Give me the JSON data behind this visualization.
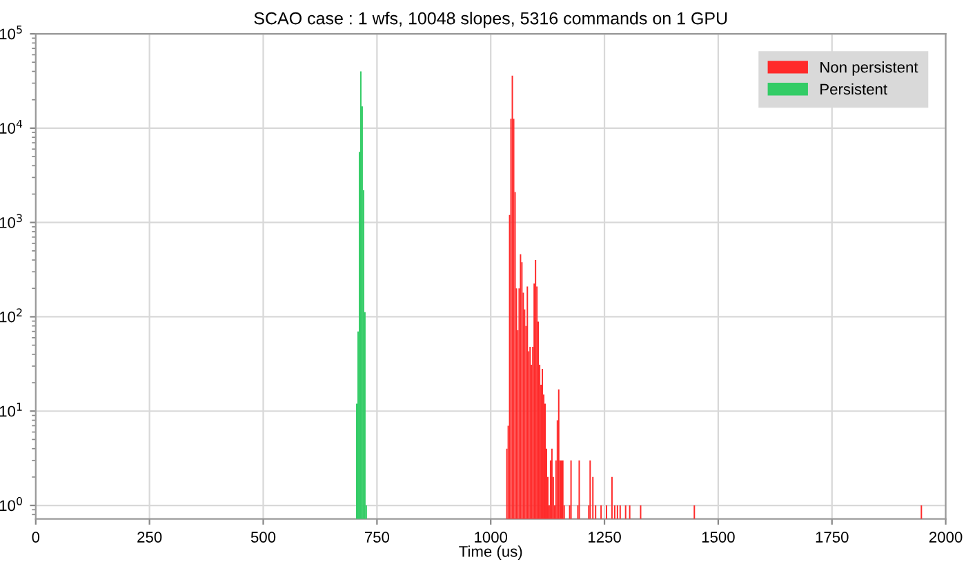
{
  "chart_data": {
    "type": "histogram",
    "title": "SCAO case : 1 wfs, 10048 slopes, 5316 commands on 1 GPU",
    "xlabel": "Time (us)",
    "bins": [
      704,
      707,
      710,
      713,
      716,
      719,
      722,
      725,
      728,
      1034,
      1037,
      1040,
      1043,
      1046,
      1049,
      1052,
      1055,
      1058,
      1061,
      1064,
      1067,
      1070,
      1073,
      1076,
      1079,
      1082,
      1085,
      1088,
      1091,
      1094,
      1097,
      1100,
      1103,
      1106,
      1109,
      1112,
      1115,
      1118,
      1121,
      1124,
      1127,
      1130,
      1133,
      1136,
      1139,
      1142,
      1145,
      1148,
      1151,
      1160,
      1163,
      1172,
      1175,
      1178,
      1190,
      1193,
      1196,
      1214,
      1217,
      1220,
      1223,
      1226,
      1229,
      1232,
      1241,
      1244,
      1253,
      1256,
      1265,
      1268,
      1271,
      1274,
      1277,
      1280,
      1283,
      1286,
      1295,
      1298,
      1304,
      1307,
      1328,
      1331,
      1446,
      1449,
      1945,
      1948
    ],
    "series": [
      {
        "name": "Non persistent",
        "color": "#ff2a2a",
        "values": [
          null,
          null,
          null,
          null,
          null,
          null,
          null,
          null,
          null,
          4,
          7,
          1200,
          12600,
          36000,
          12600,
          2100,
          200,
          72,
          200,
          460,
          380,
          180,
          120,
          80,
          210,
          43,
          48,
          31,
          48,
          225,
          400,
          210,
          89,
          31,
          19,
          28,
          15,
          12,
          4,
          2,
          1,
          3,
          4,
          2,
          1,
          3,
          8,
          17,
          3,
          1,
          null,
          1,
          3,
          null,
          1,
          3,
          null,
          1,
          3,
          null,
          2,
          null,
          1,
          null,
          1,
          null,
          1,
          null,
          2,
          null,
          1,
          null,
          1,
          null,
          1,
          null,
          1,
          null,
          1,
          null,
          1,
          null,
          1,
          null,
          1
        ]
      },
      {
        "name": "Persistent",
        "color": "#33cc66",
        "values": [
          12,
          70,
          5600,
          40000,
          17000,
          2200,
          112,
          1,
          null,
          null,
          null,
          null,
          null,
          null,
          null,
          null,
          null,
          null,
          null,
          null,
          null,
          null,
          null,
          null,
          null,
          null,
          null,
          null,
          null,
          null,
          null,
          null,
          null,
          null,
          null,
          null,
          null,
          null,
          null,
          null,
          null,
          null,
          null,
          null,
          null,
          null,
          null,
          null,
          null,
          null,
          null,
          null,
          null,
          null,
          null,
          null,
          null,
          null,
          null,
          null,
          null,
          null,
          null,
          null,
          null,
          null,
          null,
          null,
          null,
          null,
          null,
          null,
          null,
          null,
          null,
          null,
          null,
          null,
          null,
          null,
          null,
          null,
          null,
          null,
          null
        ]
      }
    ],
    "log": "y",
    "xlim": [
      0,
      2000
    ],
    "xticks": [
      0,
      250,
      500,
      750,
      1000,
      1250,
      1500,
      1750,
      2000
    ],
    "ylim": [
      0.72,
      100000
    ],
    "yticks": [
      {
        "value": 1,
        "label": "10$^{0}$"
      },
      {
        "value": 10,
        "label": "10$^{1}$"
      },
      {
        "value": 100,
        "label": "10$^{2}$"
      },
      {
        "value": 1000,
        "label": "10$^{3}$"
      },
      {
        "value": 10000,
        "label": "10$^{4}$"
      },
      {
        "value": 100000,
        "label": "10$^{5}$"
      }
    ],
    "grid": true,
    "legend": "top right"
  }
}
